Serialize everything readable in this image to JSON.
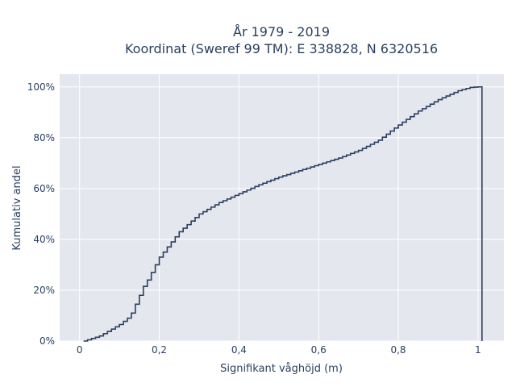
{
  "chart_data": {
    "type": "line",
    "subtype": "empirical-cdf-step",
    "title_line1": "År 1979 - 2019",
    "title_line2": "Koordinat (Sweref 99 TM): E 338828, N 6320516",
    "xlabel": "Signifikant våghöjd (m)",
    "ylabel": "Kumulativ andel",
    "xlim": [
      -0.05,
      1.065
    ],
    "ylim": [
      0,
      1.05
    ],
    "x_ticks": [
      0,
      0.2,
      0.4,
      0.6,
      0.8,
      1.0
    ],
    "x_tick_labels": [
      "0",
      "0,2",
      "0,4",
      "0,6",
      "0,8",
      "1"
    ],
    "y_ticks": [
      0,
      0.2,
      0.4,
      0.6,
      0.8,
      1.0
    ],
    "y_tick_labels": [
      "0%",
      "20%",
      "40%",
      "60%",
      "80%",
      "100%"
    ],
    "grid": true,
    "line_color": "#2a3f5f",
    "plot_bg": "#e5e7ef",
    "grid_color": "#ffffff",
    "series": [
      {
        "x": [
          0.01,
          0.05,
          0.1,
          0.12,
          0.13,
          0.14,
          0.15,
          0.16,
          0.17,
          0.18,
          0.2,
          0.25,
          0.3,
          0.35,
          0.4,
          0.45,
          0.5,
          0.55,
          0.6,
          0.65,
          0.7,
          0.75,
          0.8,
          0.85,
          0.9,
          0.95,
          0.98,
          1.0,
          1.01
        ],
        "y": [
          0.0,
          0.02,
          0.065,
          0.09,
          0.11,
          0.145,
          0.18,
          0.215,
          0.24,
          0.27,
          0.33,
          0.43,
          0.5,
          0.545,
          0.58,
          0.615,
          0.645,
          0.67,
          0.695,
          0.72,
          0.75,
          0.79,
          0.85,
          0.905,
          0.95,
          0.985,
          0.998,
          1.0,
          1.0
        ]
      }
    ]
  }
}
